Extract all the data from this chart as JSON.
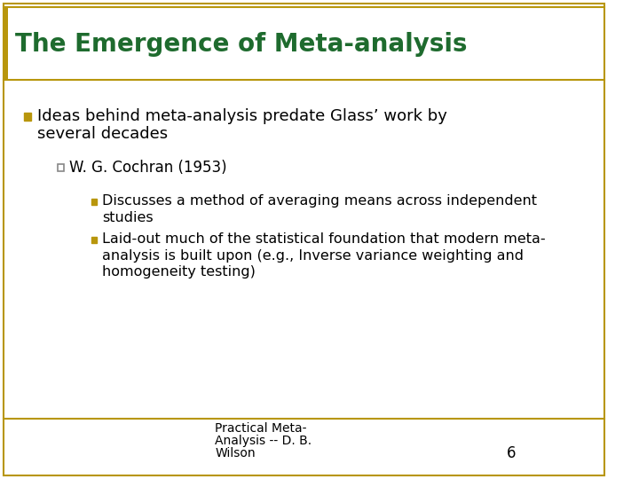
{
  "title": "The Emergence of Meta-analysis",
  "title_color": "#1e6b2e",
  "title_fontsize": 20,
  "background_color": "#ffffff",
  "border_color": "#b8960c",
  "bullet1_line1": "Ideas behind meta-analysis predate Glass’ work by",
  "bullet1_line2": "several decades",
  "sub_bullet1_text": "W. G. Cochran (1953)",
  "sub_sub_bullet1_line1": "Discusses a method of averaging means across independent",
  "sub_sub_bullet1_line2": "studies",
  "sub_sub_bullet2_line1": "Laid-out much of the statistical foundation that modern meta-",
  "sub_sub_bullet2_line2": "analysis is built upon (e.g., Inverse variance weighting and",
  "sub_sub_bullet2_line3": "homogeneity testing)",
  "footer_line1": "Practical Meta-",
  "footer_line2": "Analysis -- D. B.",
  "footer_line3": "Wilson",
  "footer_page": "6",
  "footer_line_color": "#b8960c",
  "text_color": "#000000",
  "bullet_square_color": "#b8960c",
  "sub_bullet_square_color": "#b8960c",
  "sub_sub_bullet_square_color": "#b8960c",
  "font_family": "DejaVu Sans",
  "title_left_bar_color": "#b8960c"
}
